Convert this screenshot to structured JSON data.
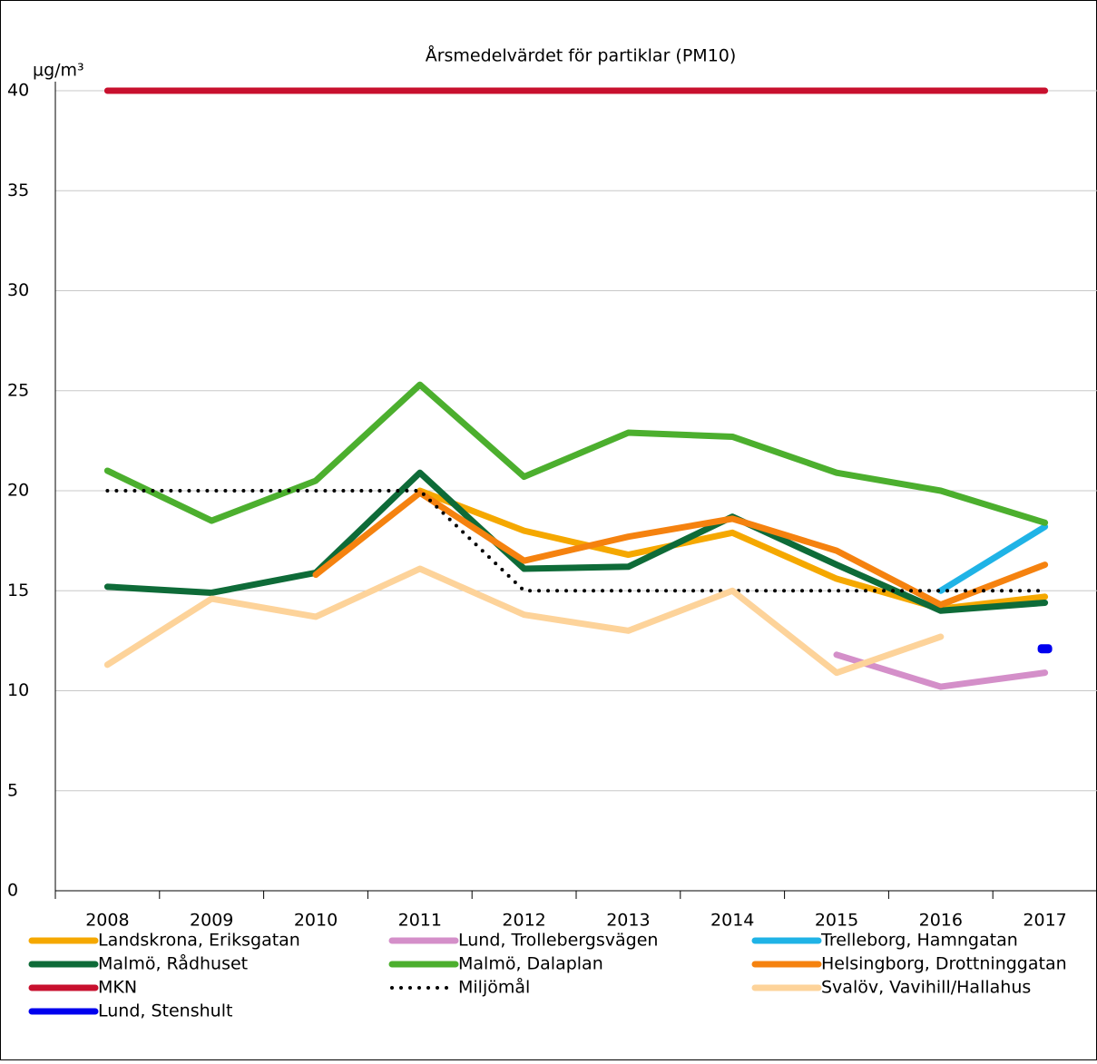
{
  "chart_data": {
    "type": "line",
    "title": "Årsmedelvärdet för partiklar (PM10)",
    "y_label": "µg/m³",
    "categories": [
      "2008",
      "2009",
      "2010",
      "2011",
      "2012",
      "2013",
      "2014",
      "2015",
      "2016",
      "2017"
    ],
    "ylim": [
      0,
      40
    ],
    "yticks": [
      0,
      5,
      10,
      15,
      20,
      25,
      30,
      35,
      40
    ],
    "grid": true,
    "series": [
      {
        "name": "Landskrona, Eriksgatan",
        "color": "#f5a800",
        "values": [
          null,
          null,
          null,
          20,
          18,
          16.8,
          17.9,
          15.6,
          14.1,
          14.7
        ]
      },
      {
        "name": "Lund, Trollebergsvägen",
        "color": "#d48fc9",
        "values": [
          null,
          null,
          null,
          null,
          null,
          null,
          null,
          11.8,
          10.2,
          10.9
        ]
      },
      {
        "name": "Trelleborg, Hamngatan",
        "color": "#1fb3e6",
        "values": [
          null,
          null,
          null,
          null,
          null,
          null,
          null,
          null,
          15,
          18.2
        ]
      },
      {
        "name": "Malmö, Rådhuset",
        "color": "#0e6b38",
        "values": [
          15.2,
          14.9,
          15.9,
          20.9,
          16.1,
          16.2,
          18.7,
          16.3,
          14,
          14.4
        ]
      },
      {
        "name": "Malmö, Dalaplan",
        "color": "#4caf2e",
        "values": [
          21,
          18.5,
          20.5,
          25.3,
          20.7,
          22.9,
          22.7,
          20.9,
          20,
          18.4
        ]
      },
      {
        "name": "Helsingborg, Drottninggatan",
        "color": "#f5820f",
        "values": [
          null,
          null,
          15.8,
          19.9,
          16.5,
          17.7,
          18.6,
          17,
          14.3,
          16.3
        ]
      },
      {
        "name": "MKN",
        "color": "#c8102e",
        "values": [
          40,
          40,
          40,
          40,
          40,
          40,
          40,
          40,
          40,
          40
        ]
      },
      {
        "name": "Miljömål",
        "color": "#000000",
        "dash": "dotted",
        "values": [
          20,
          20,
          20,
          20,
          15,
          15,
          15,
          15,
          15,
          15
        ]
      },
      {
        "name": "Svalöv, Vavihill/Hallahus",
        "color": "#fdd39a",
        "values": [
          11.3,
          14.6,
          13.7,
          16.1,
          13.8,
          13,
          15,
          10.9,
          12.7,
          null
        ]
      },
      {
        "name": "Lund, Stenshult",
        "color": "#0000ee",
        "values": [
          null,
          null,
          null,
          null,
          null,
          null,
          null,
          null,
          null,
          12.1
        ]
      }
    ]
  }
}
